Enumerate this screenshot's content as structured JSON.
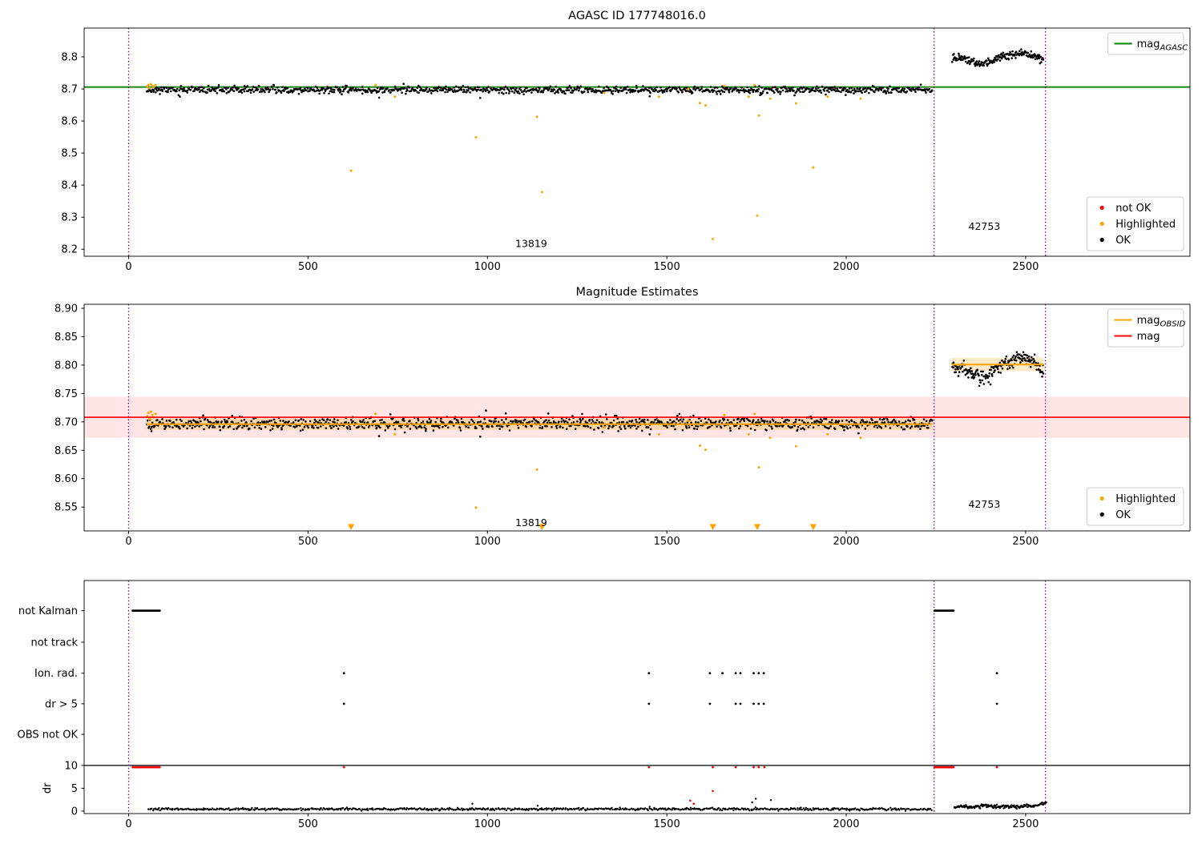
{
  "figure": {
    "background": "#ffffff"
  },
  "colors": {
    "ok": "#000000",
    "highlighted": "#ffa500",
    "not_ok": "#ff0000",
    "mag_agasc": "#008000",
    "mag": "#ff0000",
    "mag_obsid": "#ffa500",
    "obsid_divider": "#800080"
  },
  "chart_data": [
    {
      "dom_name": "subplot-agasc-mag",
      "type": "scatter",
      "title": "AGASC ID 177748016.0",
      "xlim": [
        -124,
        2958
      ],
      "ylim": [
        8.178,
        8.89
      ],
      "xticks": {
        "values": [
          0,
          500,
          1000,
          1500,
          2000,
          2500
        ],
        "labels": [
          "0",
          "500",
          "1000",
          "1500",
          "2000",
          "2500"
        ]
      },
      "yticks": {
        "values": [
          8.2,
          8.3,
          8.4,
          8.5,
          8.6,
          8.7,
          8.8
        ],
        "labels": [
          "8.2",
          "8.3",
          "8.4",
          "8.5",
          "8.6",
          "8.7",
          "8.8"
        ]
      },
      "vlines": {
        "x": [
          0,
          2245,
          2555
        ],
        "color": "#800080"
      },
      "hlines": [
        {
          "y": 8.706,
          "color": "#008000",
          "width": 1.8,
          "on_top": false,
          "name": "mag-agasc-line"
        }
      ],
      "annotations": [
        {
          "text": "13819",
          "x": 1122,
          "y": 8.207
        },
        {
          "text": "42753",
          "x": 2385,
          "y": 8.26
        }
      ],
      "series_ok_clusters": [
        {
          "name": "obsid-13819",
          "x0": 50,
          "x1": 2240,
          "count": 1100,
          "mean": 8.697,
          "std": 0.0055,
          "seed": 11
        },
        {
          "name": "obsid-42753",
          "x0": 2295,
          "x1": 2550,
          "count": 190,
          "std": 0.0055,
          "seed": 12,
          "trend": [
            [
              2295,
              8.795
            ],
            [
              2315,
              8.8
            ],
            [
              2335,
              8.793
            ],
            [
              2355,
              8.785
            ],
            [
              2375,
              8.777
            ],
            [
              2395,
              8.782
            ],
            [
              2415,
              8.793
            ],
            [
              2435,
              8.801
            ],
            [
              2455,
              8.805
            ],
            [
              2475,
              8.809
            ],
            [
              2495,
              8.812
            ],
            [
              2515,
              8.807
            ],
            [
              2535,
              8.798
            ],
            [
              2550,
              8.791
            ]
          ]
        }
      ],
      "series_ok_extra": [
        [
          698,
          8.673
        ],
        [
          980,
          8.672
        ],
        [
          1452,
          8.677
        ]
      ],
      "series_highlighted": [
        [
          52,
          8.708
        ],
        [
          55,
          8.712
        ],
        [
          58,
          8.703
        ],
        [
          62,
          8.715
        ],
        [
          66,
          8.71
        ],
        [
          70,
          8.706
        ],
        [
          75,
          8.712
        ],
        [
          620,
          8.445
        ],
        [
          688,
          8.712
        ],
        [
          742,
          8.676
        ],
        [
          968,
          8.549
        ],
        [
          1138,
          8.613
        ],
        [
          1152,
          8.378
        ],
        [
          1326,
          8.688
        ],
        [
          1478,
          8.676
        ],
        [
          1560,
          8.7
        ],
        [
          1592,
          8.656
        ],
        [
          1608,
          8.649
        ],
        [
          1628,
          8.232
        ],
        [
          1660,
          8.71
        ],
        [
          1728,
          8.676
        ],
        [
          1744,
          8.712
        ],
        [
          1752,
          8.305
        ],
        [
          1757,
          8.617
        ],
        [
          1788,
          8.67
        ],
        [
          1860,
          8.655
        ],
        [
          1908,
          8.455
        ],
        [
          1948,
          8.676
        ],
        [
          2040,
          8.67
        ]
      ],
      "legends": [
        {
          "corner": "top-right",
          "items": [
            {
              "marker": "line",
              "color": "#008000",
              "label": "mag",
              "label_sub": "AGASC"
            }
          ]
        },
        {
          "corner": "bottom-right",
          "items": [
            {
              "marker": "dot",
              "color": "#ff0000",
              "label": "not OK"
            },
            {
              "marker": "dot",
              "color": "#ffa500",
              "label": "Highlighted"
            },
            {
              "marker": "dot",
              "color": "#000000",
              "label": "OK"
            }
          ]
        }
      ]
    },
    {
      "dom_name": "subplot-magnitude-estimates",
      "type": "scatter",
      "title": "Magnitude Estimates",
      "xlim": [
        -124,
        2958
      ],
      "ylim": [
        8.508,
        8.907
      ],
      "xticks": {
        "values": [
          0,
          500,
          1000,
          1500,
          2000,
          2500
        ],
        "labels": [
          "0",
          "500",
          "1000",
          "1500",
          "2000",
          "2500"
        ]
      },
      "yticks": {
        "values": [
          8.55,
          8.6,
          8.65,
          8.7,
          8.75,
          8.8,
          8.85,
          8.9
        ],
        "labels": [
          "8.55",
          "8.60",
          "8.65",
          "8.70",
          "8.75",
          "8.80",
          "8.85",
          "8.90"
        ]
      },
      "vlines": {
        "x": [
          0,
          2245,
          2555
        ],
        "color": "#800080"
      },
      "bands": [
        {
          "y0": 8.672,
          "y1": 8.744,
          "x0": null,
          "x1": null,
          "color": "#ff0000",
          "opacity": 0.1,
          "name": "mag-error-band"
        },
        {
          "y0": 8.686,
          "y1": 8.706,
          "x0": 50,
          "x1": 2240,
          "color": "#ffa500",
          "opacity": 0.22,
          "name": "mag-obsid-band-13819"
        },
        {
          "y0": 8.789,
          "y1": 8.813,
          "x0": 2295,
          "x1": 2550,
          "color": "#ffa500",
          "opacity": 0.22,
          "name": "mag-obsid-band-42753"
        }
      ],
      "hlines": [
        {
          "y": 8.708,
          "color": "#ff0000",
          "width": 1.6,
          "on_top": true,
          "name": "mag-line"
        },
        {
          "y": 8.696,
          "color": "#ffa500",
          "x0": 50,
          "x1": 2240,
          "width": 2.2,
          "on_top": true,
          "name": "mag-obsid-line-13819"
        },
        {
          "y": 8.801,
          "color": "#ffa500",
          "x0": 2295,
          "x1": 2550,
          "width": 2.2,
          "on_top": true,
          "name": "mag-obsid-line-42753"
        }
      ],
      "annotations": [
        {
          "text": "13819",
          "x": 1122,
          "y": 8.5165
        },
        {
          "text": "42753",
          "x": 2385,
          "y": 8.549
        }
      ],
      "series_ok_clusters": [
        {
          "name": "obsid-13819",
          "x0": 50,
          "x1": 2240,
          "count": 1100,
          "mean": 8.697,
          "std": 0.0055,
          "seed": 21
        },
        {
          "name": "obsid-42753",
          "x0": 2295,
          "x1": 2550,
          "count": 190,
          "std": 0.006,
          "seed": 22,
          "trend": [
            [
              2295,
              8.795
            ],
            [
              2315,
              8.8
            ],
            [
              2335,
              8.793
            ],
            [
              2355,
              8.785
            ],
            [
              2375,
              8.777
            ],
            [
              2395,
              8.782
            ],
            [
              2415,
              8.793
            ],
            [
              2435,
              8.801
            ],
            [
              2455,
              8.805
            ],
            [
              2475,
              8.809
            ],
            [
              2495,
              8.812
            ],
            [
              2515,
              8.807
            ],
            [
              2535,
              8.798
            ],
            [
              2550,
              8.791
            ]
          ]
        }
      ],
      "series_ok_extra": [
        [
          698,
          8.675
        ],
        [
          980,
          8.674
        ],
        [
          1452,
          8.678
        ]
      ],
      "series_highlighted": [
        [
          52,
          8.71
        ],
        [
          55,
          8.716
        ],
        [
          58,
          8.705
        ],
        [
          62,
          8.718
        ],
        [
          66,
          8.712
        ],
        [
          70,
          8.708
        ],
        [
          75,
          8.714
        ],
        [
          688,
          8.714
        ],
        [
          742,
          8.678
        ],
        [
          968,
          8.549
        ],
        [
          1138,
          8.616
        ],
        [
          1326,
          8.69
        ],
        [
          1478,
          8.678
        ],
        [
          1560,
          8.702
        ],
        [
          1592,
          8.658
        ],
        [
          1608,
          8.651
        ],
        [
          1660,
          8.712
        ],
        [
          1728,
          8.678
        ],
        [
          1744,
          8.714
        ],
        [
          1757,
          8.62
        ],
        [
          1788,
          8.672
        ],
        [
          1860,
          8.657
        ],
        [
          1948,
          8.678
        ],
        [
          2040,
          8.672
        ]
      ],
      "series_clipped_low": {
        "x": [
          620,
          1152,
          1628,
          1752,
          1908
        ],
        "color": "#ffa500"
      },
      "legends": [
        {
          "corner": "top-right",
          "items": [
            {
              "marker": "line",
              "color": "#ffa500",
              "label": "mag",
              "label_sub": "OBSID"
            },
            {
              "marker": "line",
              "color": "#ff0000",
              "label": "mag"
            }
          ]
        },
        {
          "corner": "bottom-right",
          "items": [
            {
              "marker": "dot",
              "color": "#ffa500",
              "label": "Highlighted"
            },
            {
              "marker": "dot",
              "color": "#000000",
              "label": "OK"
            }
          ]
        }
      ]
    },
    {
      "dom_name": "subplot-flags-dr",
      "type": "scatter",
      "title": "",
      "xlim": [
        -124,
        2958
      ],
      "ylim": [
        -0.55,
        50.5
      ],
      "xticks": {
        "values": [
          0,
          500,
          1000,
          1500,
          2000,
          2500
        ],
        "labels": [
          "0",
          "500",
          "1000",
          "1500",
          "2000",
          "2500"
        ]
      },
      "yticks": {
        "values": [
          43.9,
          37.0,
          30.2,
          23.5,
          16.8,
          10,
          5,
          0
        ],
        "labels": [
          "not Kalman",
          "not track",
          "Ion. rad.",
          "dr > 5",
          "OBS not OK",
          "10",
          "5",
          "0"
        ]
      },
      "ylabel": {
        "text": "dr",
        "y": 5
      },
      "vlines": {
        "x": [
          0,
          2245,
          2555
        ],
        "color": "#800080"
      },
      "hlines": [
        {
          "y": 10,
          "color": "#000000",
          "width": 1.2,
          "on_top": false,
          "name": "dr-limit-line"
        }
      ],
      "flag_series": [
        {
          "row": "not Kalman",
          "y": 43.9,
          "ranges": [
            {
              "x0": 10,
              "x1": 88,
              "count": 30,
              "seed": 31
            },
            {
              "x0": 2245,
              "x1": 2300,
              "count": 26,
              "seed": 32
            }
          ],
          "x": []
        },
        {
          "row": "not track",
          "y": 37.0,
          "x": []
        },
        {
          "row": "Ion. rad.",
          "y": 30.2,
          "x": [
            600,
            1450,
            1620,
            1655,
            1692,
            1705,
            1742,
            1756,
            1770,
            2420
          ]
        },
        {
          "row": "dr > 5",
          "y": 23.5,
          "x": [
            600,
            1450,
            1620,
            1692,
            1705,
            1742,
            1756,
            1770,
            2420
          ]
        },
        {
          "row": "OBS not OK",
          "y": 16.8,
          "x": []
        }
      ],
      "red_series": {
        "clip_y": 9.6,
        "ranges": [
          {
            "x0": 10,
            "x1": 88,
            "count": 26,
            "seed": 33
          },
          {
            "x0": 2245,
            "x1": 2300,
            "count": 24,
            "seed": 34
          }
        ],
        "x": [
          600,
          1450,
          1628,
          1692,
          1742,
          1756,
          1772,
          2420
        ],
        "points": [
          [
            1565,
            2.3
          ],
          [
            1575,
            1.6
          ],
          [
            1628,
            4.4
          ]
        ]
      },
      "dr_clusters": [
        {
          "name": "dr-13819",
          "x0": 55,
          "x1": 2240,
          "count": 750,
          "mean": 0.42,
          "std": 0.13,
          "min": 0.04,
          "seed": 35
        },
        {
          "name": "dr-42753",
          "x0": 2300,
          "x1": 2558,
          "count": 170,
          "std": 0.18,
          "min": 0.1,
          "seed": 36,
          "trend": [
            [
              2300,
              0.75
            ],
            [
              2325,
              1.0
            ],
            [
              2350,
              0.9
            ],
            [
              2375,
              1.2
            ],
            [
              2400,
              1.05
            ],
            [
              2425,
              0.9
            ],
            [
              2450,
              1.1
            ],
            [
              2475,
              0.95
            ],
            [
              2500,
              1.2
            ],
            [
              2525,
              1.1
            ],
            [
              2545,
              1.6
            ],
            [
              2558,
              1.95
            ]
          ]
        }
      ],
      "dr_extra": [
        [
          958,
          1.6
        ],
        [
          1140,
          1.15
        ],
        [
          1452,
          0.95
        ],
        [
          1738,
          1.9
        ],
        [
          1748,
          2.7
        ],
        [
          1790,
          2.4
        ]
      ]
    }
  ]
}
